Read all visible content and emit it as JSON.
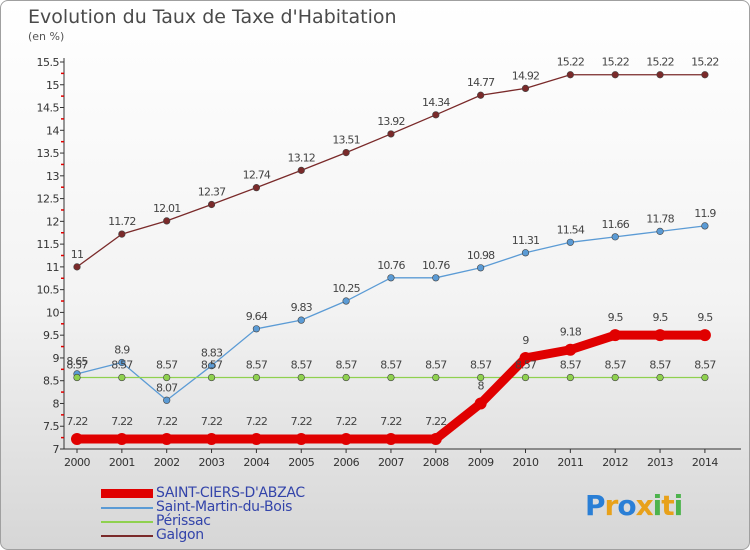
{
  "title": "Evolution du Taux de Taxe d'Habitation",
  "subtitle": "(en %)",
  "brand": {
    "letters": [
      {
        "ch": "P",
        "color": "#2a7fd6"
      },
      {
        "ch": "r",
        "color": "#e8a11a"
      },
      {
        "ch": "o",
        "color": "#2a7fd6"
      },
      {
        "ch": "x",
        "color": "#e8a11a"
      },
      {
        "ch": "i",
        "color": "#4db34d"
      },
      {
        "ch": "t",
        "color": "#e8a11a"
      },
      {
        "ch": "i",
        "color": "#4db34d"
      }
    ]
  },
  "chart_data": {
    "type": "line",
    "x": [
      "2000",
      "2001",
      "2002",
      "2003",
      "2004",
      "2005",
      "2006",
      "2007",
      "2008",
      "2009",
      "2010",
      "2011",
      "2012",
      "2013",
      "2014"
    ],
    "ylim": [
      7,
      15.5
    ],
    "yticks": [
      "7",
      "7.5",
      "8",
      "8.5",
      "9",
      "9.5",
      "10",
      "10.5",
      "11",
      "11.5",
      "12",
      "12.5",
      "13",
      "13.5",
      "14",
      "14.5",
      "15",
      "15.5"
    ],
    "grid": false,
    "legend_position": "bottom-left",
    "series": [
      {
        "name": "SAINT-CIERS-D'ABZAC",
        "color": "#e00000",
        "width": 9,
        "marker": 6,
        "values": [
          7.22,
          7.22,
          7.22,
          7.22,
          7.22,
          7.22,
          7.22,
          7.22,
          7.22,
          8,
          9,
          9.18,
          9.5,
          9.5,
          9.5
        ],
        "labels": [
          "7.22",
          "7.22",
          "7.22",
          "7.22",
          "7.22",
          "7.22",
          "7.22",
          "7.22",
          "7.22",
          "8",
          "9",
          "9.18",
          "9.5",
          "9.5",
          "9.5"
        ]
      },
      {
        "name": "Saint-Martin-du-Bois",
        "color": "#5b9bd5",
        "width": 1.3,
        "marker": 3.3,
        "values": [
          8.65,
          8.9,
          8.07,
          8.83,
          9.64,
          9.83,
          10.25,
          10.76,
          10.76,
          10.98,
          11.31,
          11.54,
          11.66,
          11.78,
          11.9
        ],
        "labels": [
          "8.65",
          "8.9",
          "8.07",
          "8.83",
          "9.64",
          "9.83",
          "10.25",
          "10.76",
          "10.76",
          "10.98",
          "11.31",
          "11.54",
          "11.66",
          "11.78",
          "11.9"
        ]
      },
      {
        "name": "Périssac",
        "color": "#8fd14f",
        "width": 1.3,
        "marker": 3.3,
        "values": [
          8.57,
          8.57,
          8.57,
          8.57,
          8.57,
          8.57,
          8.57,
          8.57,
          8.57,
          8.57,
          8.57,
          8.57,
          8.57,
          8.57,
          8.57
        ],
        "labels": [
          "8.57",
          "8.57",
          "8.57",
          "8.57",
          "8.57",
          "8.57",
          "8.57",
          "8.57",
          "8.57",
          "8.57",
          "8.57",
          "8.57",
          "8.57",
          "8.57",
          "8.57"
        ]
      },
      {
        "name": "Galgon",
        "color": "#7a2a2a",
        "width": 1.3,
        "marker": 3.3,
        "values": [
          11,
          11.72,
          12.01,
          12.37,
          12.74,
          13.12,
          13.51,
          13.92,
          14.34,
          14.77,
          14.92,
          15.22,
          15.22,
          15.22,
          15.22
        ],
        "labels": [
          "11",
          "11.72",
          "12.01",
          "12.37",
          "12.74",
          "13.12",
          "13.51",
          "13.92",
          "14.34",
          "14.77",
          "14.92",
          "15.22",
          "15.22",
          "15.22",
          "15.22"
        ]
      }
    ]
  }
}
